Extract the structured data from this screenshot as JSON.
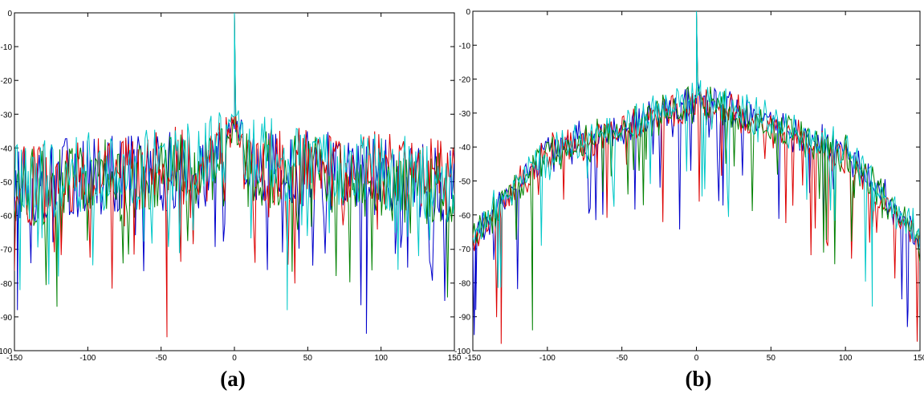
{
  "chart_data": [
    {
      "type": "line",
      "panel_label": "(a)",
      "title": "",
      "xlabel": "",
      "ylabel": "",
      "xlim": [
        -150,
        150
      ],
      "ylim": [
        -100,
        0
      ],
      "xticks": [
        "-150",
        "-100",
        "-50",
        "0",
        "50",
        "100",
        "150"
      ],
      "yticks": [
        "0",
        "-10",
        "-20",
        "-30",
        "-40",
        "-50",
        "-60",
        "-70",
        "-80",
        "-90",
        "-100"
      ],
      "grid": false,
      "legend": "none",
      "peak": {
        "x": 0,
        "y": 0
      },
      "noise_floor_mean": -50,
      "noise_spread": 8,
      "near_peak_level": -30,
      "deep_dips": [
        {
          "x": -148,
          "y": -88
        },
        {
          "x": -121,
          "y": -87
        },
        {
          "x": -46,
          "y": -96
        },
        {
          "x": 36,
          "y": -88
        },
        {
          "x": 90,
          "y": -95
        }
      ],
      "series": [
        {
          "color": "#0000cc",
          "x": [
            -150,
            -100,
            -50,
            0,
            50,
            100,
            150
          ],
          "y": [
            -52,
            -48,
            -47,
            -45,
            -47,
            -48,
            -52
          ]
        },
        {
          "color": "#008000",
          "x": [
            -150,
            -100,
            -50,
            0,
            50,
            100,
            150
          ],
          "y": [
            -53,
            -49,
            -48,
            -46,
            -48,
            -49,
            -53
          ]
        },
        {
          "color": "#dd0000",
          "x": [
            -150,
            -100,
            -50,
            0,
            50,
            100,
            150
          ],
          "y": [
            -52,
            -48,
            -46,
            -44,
            -46,
            -47,
            -50
          ]
        },
        {
          "color": "#00c8c8",
          "x": [
            -150,
            -100,
            -50,
            0,
            50,
            100,
            150
          ],
          "y": [
            -51,
            -47,
            -46,
            -40,
            -46,
            -47,
            -51
          ]
        }
      ]
    },
    {
      "type": "line",
      "panel_label": "(b)",
      "title": "",
      "xlabel": "",
      "ylabel": "",
      "xlim": [
        -150,
        150
      ],
      "ylim": [
        -100,
        0
      ],
      "xticks": [
        "-150",
        "-100",
        "-50",
        "0",
        "50",
        "100",
        "150"
      ],
      "yticks": [
        "0",
        "-10",
        "-20",
        "-30",
        "-40",
        "-50",
        "-60",
        "-70",
        "-80",
        "-90",
        "-100"
      ],
      "grid": false,
      "legend": "none",
      "peak": {
        "x": 0,
        "y": 0
      },
      "envelope": {
        "x": [
          -150,
          -130,
          -100,
          -75,
          -50,
          -25,
          0,
          25,
          50,
          75,
          100,
          125,
          150
        ],
        "y": [
          -62,
          -48,
          -38,
          -34,
          -30,
          -28,
          -22,
          -27,
          -29,
          -33,
          -38,
          -48,
          -64
        ]
      },
      "deep_dips": [
        {
          "x": -148,
          "y": -88
        },
        {
          "x": -131,
          "y": -98
        },
        {
          "x": -110,
          "y": -94
        },
        {
          "x": 118,
          "y": -87
        },
        {
          "x": 142,
          "y": -88
        }
      ],
      "series": [
        {
          "color": "#0000cc",
          "x": [
            -150,
            -100,
            -50,
            0,
            50,
            100,
            150
          ],
          "y": [
            -62,
            -38,
            -30,
            -22,
            -29,
            -38,
            -63
          ]
        },
        {
          "color": "#dd0000",
          "x": [
            -150,
            -100,
            -50,
            0,
            50,
            100,
            150
          ],
          "y": [
            -63,
            -39,
            -31,
            -23,
            -30,
            -39,
            -65
          ]
        },
        {
          "color": "#008000",
          "x": [
            -150,
            -100,
            -50,
            0,
            50,
            100,
            150
          ],
          "y": [
            -62,
            -38,
            -31,
            -23,
            -30,
            -38,
            -64
          ]
        },
        {
          "color": "#00c8c8",
          "x": [
            -150,
            -100,
            -50,
            0,
            50,
            100,
            150
          ],
          "y": [
            -61,
            -37,
            -30,
            -21,
            -28,
            -37,
            -62
          ]
        }
      ]
    }
  ]
}
